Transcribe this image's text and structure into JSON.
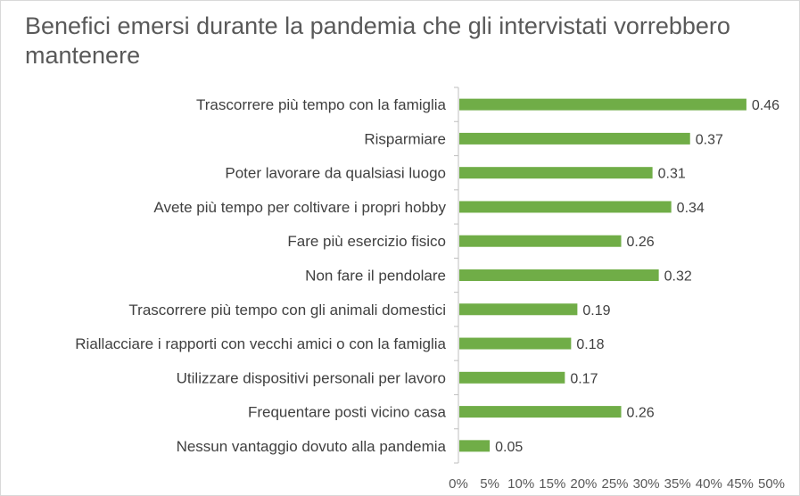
{
  "chart_data": {
    "type": "bar",
    "orientation": "horizontal",
    "title": "Benefici emersi durante la pandemia che gli intervistati vorrebbero mantenere",
    "categories": [
      "Trascorrere più tempo con la famiglia",
      "Risparmiare",
      "Poter lavorare da qualsiasi luogo",
      "Avete più tempo per coltivare i propri hobby",
      "Fare più esercizio fisico",
      "Non fare il pendolare",
      "Trascorrere più tempo con gli animali domestici",
      "Riallacciare i rapporti con vecchi amici o con la famiglia",
      "Utilizzare dispositivi personali per lavoro",
      "Frequentare posti vicino casa",
      "Nessun vantaggio dovuto alla pandemia"
    ],
    "values": [
      0.46,
      0.37,
      0.31,
      0.34,
      0.26,
      0.32,
      0.19,
      0.18,
      0.17,
      0.26,
      0.05
    ],
    "value_labels": [
      "0.46",
      "0.37",
      "0.31",
      "0.34",
      "0.26",
      "0.32",
      "0.19",
      "0.18",
      "0.17",
      "0.26",
      "0.05"
    ],
    "xlim": [
      0,
      0.5
    ],
    "x_ticks": [
      0,
      0.05,
      0.1,
      0.15,
      0.2,
      0.25,
      0.3,
      0.35,
      0.4,
      0.45,
      0.5
    ],
    "x_tick_labels": [
      "0%",
      "5%",
      "10%",
      "15%",
      "20%",
      "25%",
      "30%",
      "35%",
      "40%",
      "45%",
      "50%"
    ],
    "xlabel": "",
    "ylabel": "",
    "grid": false,
    "legend": "none",
    "bar_color": "#70ad47"
  }
}
